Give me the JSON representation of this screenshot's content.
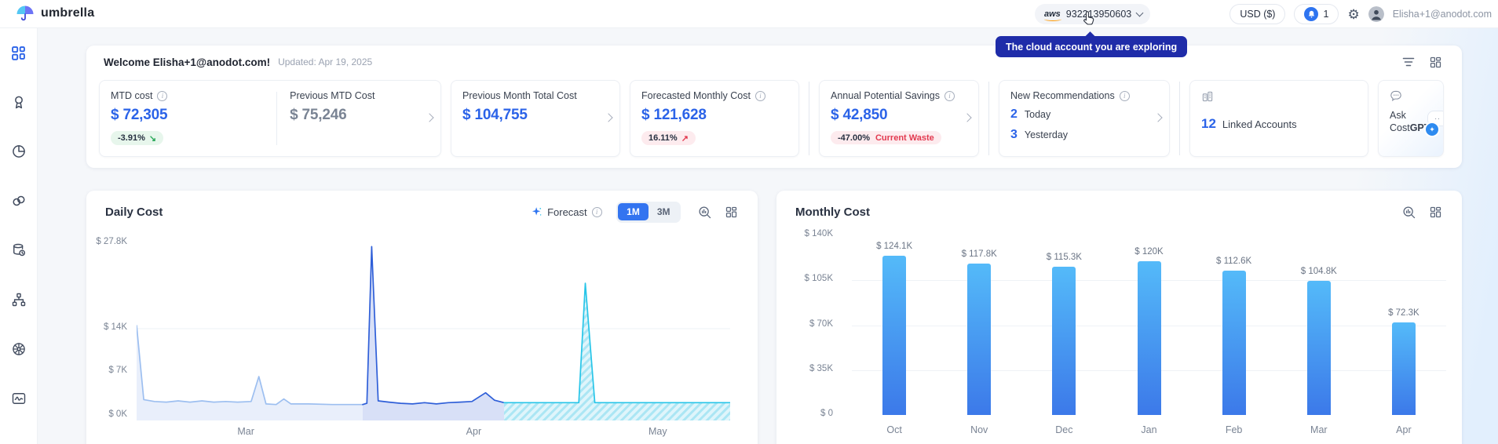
{
  "topbar": {
    "brand": "umbrella",
    "account_selector": {
      "provider": "aws",
      "id": "932213950603"
    },
    "tooltip": "The cloud account you are exploring",
    "currency_label": "USD ($)",
    "notification_count": "1",
    "user_email": "Elisha+1@anodot.com"
  },
  "sidebar": {
    "items": [
      {
        "icon": "dashboard-icon",
        "active": true
      },
      {
        "icon": "badge-icon",
        "active": false
      },
      {
        "icon": "pie-time-icon",
        "active": false
      },
      {
        "icon": "link-icon",
        "active": false
      },
      {
        "icon": "database-clock-icon",
        "active": false
      },
      {
        "icon": "hierarchy-icon",
        "active": false
      },
      {
        "icon": "kubernetes-wheel-icon",
        "active": false
      },
      {
        "icon": "anomaly-icon",
        "active": false
      }
    ]
  },
  "welcome": {
    "title": "Welcome Elisha+1@anodot.com!",
    "updated": "Updated: Apr 19, 2025"
  },
  "icons": {
    "trend_down": "↘",
    "trend_up": "↗",
    "gear": "⚙"
  },
  "kpis": {
    "mtd": {
      "label": "MTD cost",
      "value": "$ 72,305",
      "delta": "-3.91%"
    },
    "prev_mtd": {
      "label": "Previous MTD Cost",
      "value": "$ 75,246"
    },
    "prev_month_total": {
      "label": "Previous Month Total Cost",
      "value": "$ 104,755"
    },
    "forecasted": {
      "label": "Forecasted Monthly Cost",
      "value": "$ 121,628",
      "delta": "16.11%"
    },
    "savings": {
      "label": "Annual Potential Savings",
      "value": "$ 42,850",
      "delta": "-47.00%",
      "delta_note": "Current Waste"
    },
    "recommendations": {
      "label": "New Recommendations",
      "rows": [
        {
          "count": "2",
          "label": "Today"
        },
        {
          "count": "3",
          "label": "Yesterday"
        }
      ]
    },
    "linked_accounts": {
      "count": "12",
      "label": "Linked Accounts"
    },
    "costgpt": {
      "line1": "Ask",
      "line2": "Cost",
      "line2_bold": "GPT",
      "bot_eyes": "..",
      "orb_glyph": "✦"
    }
  },
  "colors": {
    "accent_blue": "#2B63E8",
    "tooltip_bg": "#1F2CA9",
    "positive_badge_bg": "#E7F6EC",
    "negative_badge_bg": "#FDEBEE",
    "green": "#2BA85A",
    "red": "#E2394F",
    "history_light": "#9DBFF0",
    "history_blue": "#2F5FD8",
    "forecast_cyan": "#27C5E8"
  },
  "chart_data": [
    {
      "type": "area",
      "title": "Daily Cost",
      "legend": {
        "forecast_label": "Forecast"
      },
      "range_options": [
        "1M",
        "3M"
      ],
      "selected_range": "1M",
      "ylim_k": [
        0,
        29
      ],
      "y_ticks": [
        {
          "label": "$ 0K",
          "value_k": 0
        },
        {
          "label": "$ 7K",
          "value_k": 7
        },
        {
          "label": "$ 14K",
          "value_k": 14
        },
        {
          "label": "$ 27.8K",
          "value_k": 27.8
        }
      ],
      "gridline_values_k": [
        14
      ],
      "x_ticks": [
        {
          "label": "Mar",
          "x_pct": 18.4
        },
        {
          "label": "Apr",
          "x_pct": 56.8
        },
        {
          "label": "May",
          "x_pct": 87.8
        }
      ],
      "series": [
        {
          "name": "history-early",
          "line_color": "#9DBFF0",
          "fill_color": "#E9EFFB",
          "points_pct_k": [
            [
              0,
              14.5
            ],
            [
              1.2,
              2.6
            ],
            [
              3,
              2.3
            ],
            [
              5,
              2.2
            ],
            [
              7,
              2.4
            ],
            [
              9,
              2.2
            ],
            [
              11,
              2.4
            ],
            [
              13,
              2.2
            ],
            [
              15,
              2.3
            ],
            [
              17,
              2.2
            ],
            [
              19.3,
              2.3
            ],
            [
              20.6,
              6.3
            ],
            [
              21.8,
              1.9
            ],
            [
              23.5,
              1.8
            ],
            [
              24.8,
              2.7
            ],
            [
              26,
              1.9
            ],
            [
              29,
              1.9
            ],
            [
              33,
              1.8
            ],
            [
              38.1,
              1.8
            ]
          ]
        },
        {
          "name": "history-recent",
          "line_color": "#2F5FD8",
          "fill_color": "#D8E0F7",
          "points_pct_k": [
            [
              38.1,
              1.8
            ],
            [
              38.8,
              2.0
            ],
            [
              39.6,
              27.2
            ],
            [
              40.7,
              2.4
            ],
            [
              42.5,
              2.2
            ],
            [
              44.5,
              2.0
            ],
            [
              46.5,
              1.9
            ],
            [
              48.5,
              2.1
            ],
            [
              50.5,
              1.9
            ],
            [
              52.5,
              2.1
            ],
            [
              54.5,
              2.2
            ],
            [
              56.5,
              2.3
            ],
            [
              58.8,
              3.7
            ],
            [
              60.3,
              2.5
            ],
            [
              61.9,
              2.1
            ]
          ]
        },
        {
          "name": "forecast",
          "line_color": "#27C5E8",
          "fill_color": "#DFF5FB",
          "hatch_color": "#ABE6F4",
          "points_pct_k": [
            [
              61.9,
              2.1
            ],
            [
              68,
              2.1
            ],
            [
              74.5,
              2.1
            ],
            [
              75.6,
              21.3
            ],
            [
              77.2,
              2.1
            ],
            [
              83,
              2.1
            ],
            [
              100,
              2.1
            ]
          ]
        }
      ]
    },
    {
      "type": "bar",
      "title": "Monthly Cost",
      "categories": [
        "Oct",
        "Nov",
        "Dec",
        "Jan",
        "Feb",
        "Mar",
        "Apr"
      ],
      "values_k": [
        124.1,
        117.8,
        115.3,
        120,
        112.6,
        104.8,
        72.3
      ],
      "bar_labels": [
        "$ 124.1K",
        "$ 117.8K",
        "$ 115.3K",
        "$ 120K",
        "$ 112.6K",
        "$ 104.8K",
        "$ 72.3K"
      ],
      "ylim_k": [
        0,
        140
      ],
      "y_ticks": [
        {
          "label": "$ 0",
          "value_k": 0
        },
        {
          "label": "$ 35K",
          "value_k": 35
        },
        {
          "label": "$ 70K",
          "value_k": 70
        },
        {
          "label": "$ 105K",
          "value_k": 105
        },
        {
          "label": "$ 140K",
          "value_k": 140
        }
      ],
      "gridline_values_k": [
        35,
        70,
        105
      ],
      "bar_gradient": [
        "#54BAF9",
        "#3C79E9"
      ]
    }
  ]
}
